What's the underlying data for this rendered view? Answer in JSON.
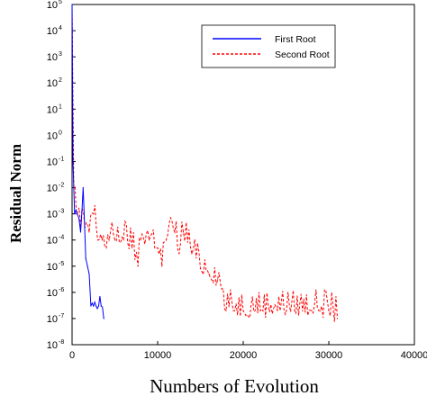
{
  "chart_data": {
    "type": "line",
    "title": "",
    "xlabel": "Numbers of Evolution",
    "ylabel": "Residual Norm",
    "xlim": [
      0,
      40000
    ],
    "ylim_exponent": [
      -8,
      5
    ],
    "yscale": "log",
    "x_ticks": [
      "0",
      "10000",
      "20000",
      "30000",
      "40000"
    ],
    "y_ticks": [
      {
        "base": "10",
        "exp": "-8"
      },
      {
        "base": "10",
        "exp": "-7"
      },
      {
        "base": "10",
        "exp": "-6"
      },
      {
        "base": "10",
        "exp": "-5"
      },
      {
        "base": "10",
        "exp": "-4"
      },
      {
        "base": "10",
        "exp": "-3"
      },
      {
        "base": "10",
        "exp": "-2"
      },
      {
        "base": "10",
        "exp": "-1"
      },
      {
        "base": "10",
        "exp": "0"
      },
      {
        "base": "10",
        "exp": "1"
      },
      {
        "base": "10",
        "exp": "2"
      },
      {
        "base": "10",
        "exp": "3"
      },
      {
        "base": "10",
        "exp": "4"
      },
      {
        "base": "10",
        "exp": "5"
      }
    ],
    "legend_position": "top-right",
    "series": [
      {
        "name": "First Root",
        "color": "#0000ff",
        "style": "solid",
        "x": [
          0,
          100,
          300,
          600,
          1000,
          1300,
          1600,
          1800,
          2000,
          2200,
          2500,
          2800,
          3100,
          3400,
          3700
        ],
        "y": [
          100000,
          0.1,
          0.001,
          0.001,
          0.0002,
          0.01,
          2e-05,
          1e-05,
          5e-06,
          3e-07,
          3e-07,
          3e-07,
          3e-07,
          3e-07,
          1e-07
        ]
      },
      {
        "name": "Second Root",
        "color": "#ff0000",
        "style": "dashed",
        "x": [
          0,
          200,
          500,
          1000,
          1500,
          2000,
          2500,
          3000,
          3500,
          4000,
          5000,
          6000,
          7000,
          7700,
          8000,
          9000,
          10000,
          10500,
          11000,
          12000,
          12500,
          13000,
          14000,
          15000,
          16000,
          17000,
          18000,
          19000,
          20000,
          22000,
          24000,
          26000,
          28000,
          29000,
          30000,
          31000
        ],
        "y": [
          100000,
          0.01,
          0.001,
          0.0003,
          0.0003,
          0.0002,
          0.001,
          0.0001,
          0.0001,
          5e-05,
          0.0001,
          0.0001,
          5e-05,
          1e-05,
          0.0001,
          0.0001,
          5e-05,
          1e-05,
          0.0001,
          0.0002,
          3e-05,
          0.0002,
          3e-05,
          8e-06,
          5e-06,
          3e-06,
          2e-07,
          2e-07,
          2e-07,
          2e-07,
          2e-07,
          2e-07,
          2e-07,
          2e-07,
          2e-07,
          1e-07
        ]
      }
    ]
  }
}
